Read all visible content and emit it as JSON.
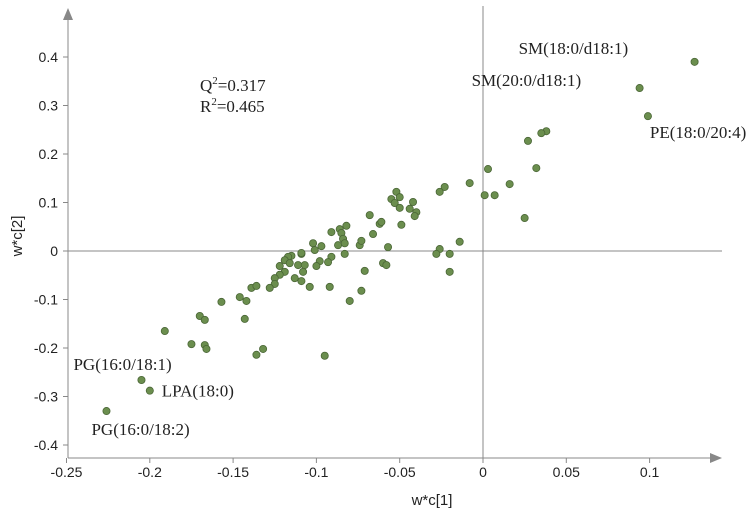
{
  "chart_data": {
    "type": "scatter",
    "xlabel": "w*c[1]",
    "ylabel": "w*c[2]",
    "xlim": [
      -0.25,
      0.15
    ],
    "ylim": [
      -0.4,
      0.45
    ],
    "xticks": [
      -0.25,
      -0.2,
      -0.15,
      -0.1,
      -0.05,
      0,
      0.05,
      0.1
    ],
    "xtick_labels": [
      "-0.25",
      "-0.2",
      "-0.15",
      "-0.1",
      "-0.05",
      "0",
      "0.05",
      "0.1"
    ],
    "yticks": [
      -0.4,
      -0.3,
      -0.2,
      -0.1,
      0,
      0.1,
      0.2,
      0.3,
      0.4
    ],
    "ytick_labels": [
      "-0.4",
      "-0.3",
      "-0.2",
      "-0.1",
      "0",
      "0.1",
      "0.2",
      "0.3",
      "0.4"
    ],
    "grid": false,
    "point_color": "#6b8e4e",
    "point_edge": "#4a6636",
    "stats": {
      "q2_label": "Q",
      "q2_sup": "2",
      "q2_value": "=0.317",
      "r2_label": "R",
      "r2_sup": "2",
      "r2_value": "=0.465"
    },
    "annotations": [
      {
        "text": "SM(18:0/d18:1)",
        "x": 0.127,
        "y": 0.39
      },
      {
        "text": "SM(20:0/d18:1)",
        "x": 0.094,
        "y": 0.336
      },
      {
        "text": "PE(18:0/20:4)",
        "x": 0.099,
        "y": 0.278
      },
      {
        "text": "PG(16:0/18:1)",
        "x": -0.205,
        "y": -0.266
      },
      {
        "text": "LPA(18:0)",
        "x": -0.2,
        "y": -0.288
      },
      {
        "text": "PG(16:0/18:2)",
        "x": -0.226,
        "y": -0.33
      }
    ],
    "points": [
      [
        0.127,
        0.39
      ],
      [
        0.094,
        0.336
      ],
      [
        0.099,
        0.278
      ],
      [
        0.038,
        0.247
      ],
      [
        0.035,
        0.243
      ],
      [
        0.027,
        0.227
      ],
      [
        0.032,
        0.171
      ],
      [
        0.003,
        0.169
      ],
      [
        -0.008,
        0.14
      ],
      [
        -0.023,
        0.132
      ],
      [
        -0.026,
        0.122
      ],
      [
        0.016,
        0.138
      ],
      [
        0.001,
        0.115
      ],
      [
        0.007,
        0.115
      ],
      [
        0.025,
        0.068
      ],
      [
        -0.014,
        0.019
      ],
      [
        -0.026,
        0.004
      ],
      [
        -0.028,
        -0.006
      ],
      [
        -0.02,
        -0.006
      ],
      [
        -0.02,
        -0.043
      ],
      [
        -0.052,
        0.122
      ],
      [
        -0.055,
        0.107
      ],
      [
        -0.05,
        0.111
      ],
      [
        -0.053,
        0.099
      ],
      [
        -0.05,
        0.089
      ],
      [
        -0.042,
        0.101
      ],
      [
        -0.044,
        0.087
      ],
      [
        -0.04,
        0.08
      ],
      [
        -0.041,
        0.072
      ],
      [
        -0.049,
        0.054
      ],
      [
        -0.068,
        0.074
      ],
      [
        -0.062,
        0.056
      ],
      [
        -0.061,
        0.06
      ],
      [
        -0.066,
        0.035
      ],
      [
        -0.082,
        0.052
      ],
      [
        -0.086,
        0.045
      ],
      [
        -0.091,
        0.039
      ],
      [
        -0.085,
        0.037
      ],
      [
        -0.084,
        0.025
      ],
      [
        -0.087,
        0.012
      ],
      [
        -0.083,
        0.016
      ],
      [
        -0.074,
        0.012
      ],
      [
        -0.073,
        0.021
      ],
      [
        -0.057,
        0.008
      ],
      [
        -0.083,
        -0.006
      ],
      [
        -0.091,
        -0.012
      ],
      [
        -0.093,
        -0.023
      ],
      [
        -0.098,
        -0.021
      ],
      [
        -0.1,
        -0.031
      ],
      [
        -0.097,
        0.01
      ],
      [
        -0.102,
        0.016
      ],
      [
        -0.101,
        0.002
      ],
      [
        -0.109,
        -0.006
      ],
      [
        -0.115,
        -0.01
      ],
      [
        -0.111,
        -0.029
      ],
      [
        -0.107,
        -0.029
      ],
      [
        -0.108,
        -0.043
      ],
      [
        -0.113,
        -0.056
      ],
      [
        -0.109,
        -0.062
      ],
      [
        -0.104,
        -0.074
      ],
      [
        -0.092,
        -0.074
      ],
      [
        -0.071,
        -0.041
      ],
      [
        -0.06,
        -0.025
      ],
      [
        -0.058,
        -0.029
      ],
      [
        -0.073,
        -0.082
      ],
      [
        -0.08,
        -0.103
      ],
      [
        -0.095,
        -0.216
      ],
      [
        -0.109,
        -0.004
      ],
      [
        -0.117,
        -0.012
      ],
      [
        -0.119,
        -0.019
      ],
      [
        -0.122,
        -0.031
      ],
      [
        -0.116,
        -0.025
      ],
      [
        -0.119,
        -0.043
      ],
      [
        -0.122,
        -0.049
      ],
      [
        -0.125,
        -0.056
      ],
      [
        -0.125,
        -0.068
      ],
      [
        -0.128,
        -0.076
      ],
      [
        -0.139,
        -0.076
      ],
      [
        -0.136,
        -0.072
      ],
      [
        -0.157,
        -0.105
      ],
      [
        -0.146,
        -0.095
      ],
      [
        -0.142,
        -0.103
      ],
      [
        -0.143,
        -0.14
      ],
      [
        -0.17,
        -0.134
      ],
      [
        -0.167,
        -0.142
      ],
      [
        -0.191,
        -0.165
      ],
      [
        -0.175,
        -0.192
      ],
      [
        -0.167,
        -0.194
      ],
      [
        -0.166,
        -0.202
      ],
      [
        -0.136,
        -0.214
      ],
      [
        -0.132,
        -0.202
      ],
      [
        -0.205,
        -0.266
      ],
      [
        -0.2,
        -0.288
      ],
      [
        -0.226,
        -0.33
      ]
    ]
  }
}
